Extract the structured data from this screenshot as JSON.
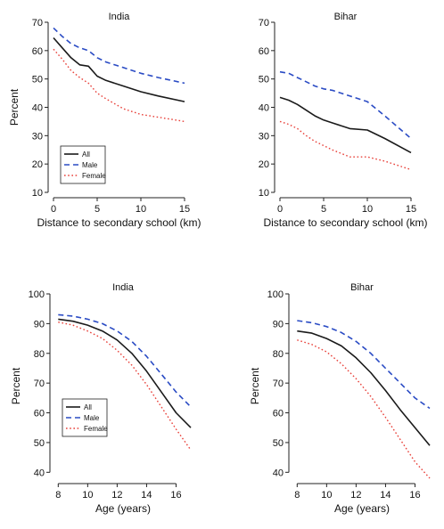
{
  "colors": {
    "all": "#1a1a1a",
    "male": "#2a4bc4",
    "female": "#e8413a",
    "axis": "#222222"
  },
  "chart_data": [
    {
      "type": "line",
      "title": "India",
      "xlabel": "Distance to secondary school (km)",
      "ylabel": "Percent",
      "xlim": [
        0,
        15
      ],
      "ylim": [
        10,
        70
      ],
      "xticks": [
        0,
        5,
        10,
        15
      ],
      "yticks": [
        10,
        20,
        30,
        40,
        50,
        60,
        70
      ],
      "legend": "bottom-left",
      "series": [
        {
          "name": "All",
          "style": "solid",
          "x": [
            0,
            1,
            2,
            3,
            4,
            5,
            6,
            8,
            10,
            12,
            15
          ],
          "values": [
            64.5,
            61,
            57.5,
            55,
            54.5,
            51,
            49.5,
            47.5,
            45.5,
            44,
            42
          ]
        },
        {
          "name": "Male",
          "style": "dashed",
          "x": [
            0,
            1,
            2,
            3,
            4,
            5,
            6,
            8,
            10,
            12,
            15
          ],
          "values": [
            68,
            65,
            62.5,
            61,
            60,
            57.5,
            56,
            54,
            52,
            50.5,
            48.5
          ]
        },
        {
          "name": "Female",
          "style": "dotted",
          "x": [
            0,
            1,
            2,
            3,
            4,
            5,
            6,
            8,
            10,
            12,
            15
          ],
          "values": [
            60.5,
            57,
            53,
            50.5,
            48.5,
            45,
            43,
            39.5,
            37.5,
            36.5,
            35
          ]
        }
      ]
    },
    {
      "type": "line",
      "title": "Bihar",
      "xlabel": "Distance to secondary school (km)",
      "ylabel": "",
      "xlim": [
        0,
        15
      ],
      "ylim": [
        10,
        70
      ],
      "xticks": [
        0,
        5,
        10,
        15
      ],
      "yticks": [
        10,
        20,
        30,
        40,
        50,
        60,
        70
      ],
      "series": [
        {
          "name": "All",
          "style": "solid",
          "x": [
            0,
            1,
            2,
            3,
            4,
            5,
            6,
            8,
            10,
            12,
            15
          ],
          "values": [
            43.5,
            42.5,
            41,
            39,
            37,
            35.5,
            34.5,
            32.5,
            32,
            29,
            24
          ]
        },
        {
          "name": "Male",
          "style": "dashed",
          "x": [
            0,
            1,
            2,
            3,
            4,
            5,
            6,
            8,
            10,
            12,
            15
          ],
          "values": [
            52.5,
            52,
            50.5,
            49,
            47.5,
            46.5,
            46,
            44,
            42,
            37,
            29
          ]
        },
        {
          "name": "Female",
          "style": "dotted",
          "x": [
            0,
            1,
            2,
            3,
            4,
            5,
            6,
            8,
            10,
            12,
            15
          ],
          "values": [
            35,
            34,
            32.5,
            30,
            28,
            26.5,
            25,
            22.5,
            22.5,
            21,
            18
          ]
        }
      ]
    },
    {
      "type": "line",
      "title": "India",
      "xlabel": "Age (years)",
      "ylabel": "Percent",
      "xlim": [
        7.8,
        17
      ],
      "ylim": [
        38,
        100
      ],
      "xticks": [
        8,
        10,
        12,
        14,
        16
      ],
      "yticks": [
        40,
        50,
        60,
        70,
        80,
        90,
        100
      ],
      "legend": "bottom-left",
      "series": [
        {
          "name": "All",
          "style": "solid",
          "x": [
            8,
            9,
            10,
            11,
            12,
            13,
            14,
            15,
            16,
            17
          ],
          "values": [
            91.5,
            90.8,
            89.5,
            87.5,
            84.5,
            80,
            74,
            67,
            60,
            55
          ]
        },
        {
          "name": "Male",
          "style": "dashed",
          "x": [
            8,
            9,
            10,
            11,
            12,
            13,
            14,
            15,
            16,
            17
          ],
          "values": [
            93,
            92.5,
            91.5,
            90,
            87.5,
            84,
            79,
            73,
            67,
            62
          ]
        },
        {
          "name": "Female",
          "style": "dotted",
          "x": [
            8,
            9,
            10,
            11,
            12,
            13,
            14,
            15,
            16,
            17
          ],
          "values": [
            90.5,
            89.5,
            87.5,
            85,
            81,
            76,
            69.5,
            62,
            54.5,
            47.5
          ]
        }
      ]
    },
    {
      "type": "line",
      "title": "Bihar",
      "xlabel": "Age (years)",
      "ylabel": "Percent",
      "xlim": [
        7.8,
        17
      ],
      "ylim": [
        38,
        100
      ],
      "xticks": [
        8,
        10,
        12,
        14,
        16
      ],
      "yticks": [
        40,
        50,
        60,
        70,
        80,
        90,
        100
      ],
      "series": [
        {
          "name": "All",
          "style": "solid",
          "x": [
            8,
            9,
            10,
            11,
            12,
            13,
            14,
            15,
            16,
            17
          ],
          "values": [
            87.5,
            86.8,
            85,
            82.5,
            78.5,
            73.5,
            67.5,
            61,
            55,
            49
          ]
        },
        {
          "name": "Male",
          "style": "dashed",
          "x": [
            8,
            9,
            10,
            11,
            12,
            13,
            14,
            15,
            16,
            17
          ],
          "values": [
            91,
            90.3,
            89,
            87,
            84,
            80,
            75,
            70,
            65,
            61.5
          ]
        },
        {
          "name": "Female",
          "style": "dotted",
          "x": [
            8,
            9,
            10,
            11,
            12,
            13,
            14,
            15,
            16,
            17
          ],
          "values": [
            84.5,
            83,
            80.5,
            76.5,
            71.5,
            65.5,
            58.5,
            51,
            43.5,
            38
          ]
        }
      ]
    }
  ]
}
